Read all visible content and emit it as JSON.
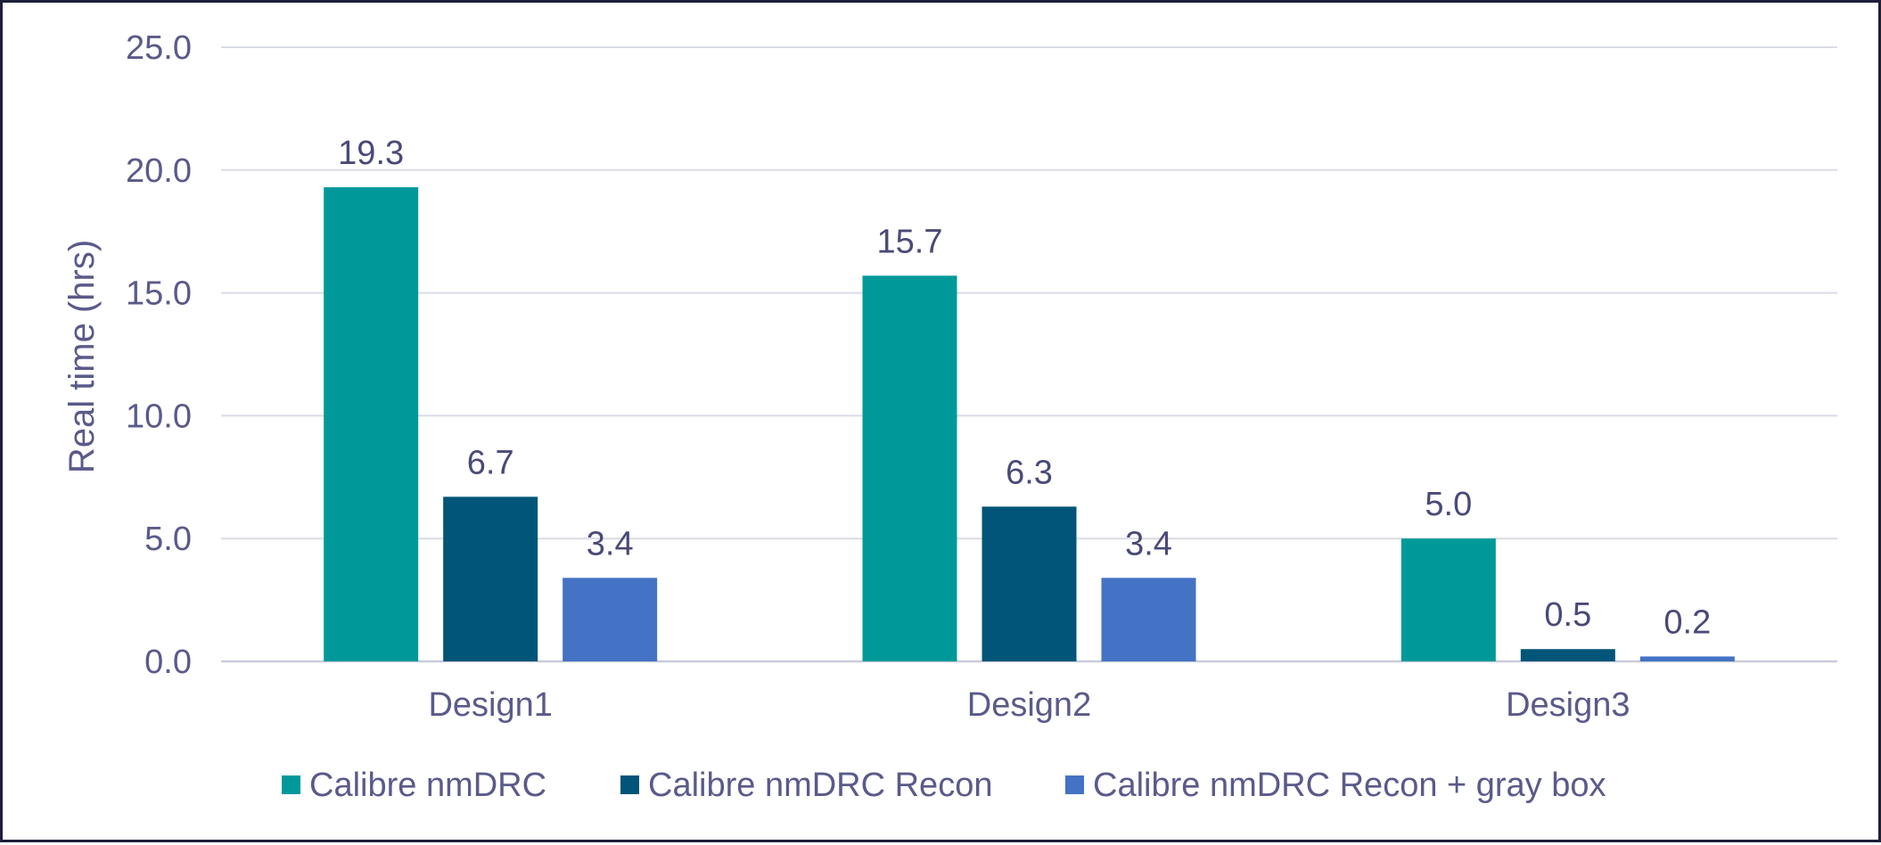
{
  "chart_data": {
    "type": "bar",
    "title": "",
    "xlabel": "",
    "ylabel": "Real time (hrs)",
    "categories": [
      "Design1",
      "Design2",
      "Design3"
    ],
    "series": [
      {
        "name": "Calibre nmDRC",
        "values": [
          19.3,
          15.7,
          5.0
        ],
        "color": "#009999"
      },
      {
        "name": "Calibre nmDRC Recon",
        "values": [
          6.7,
          6.3,
          0.5
        ],
        "color": "#005578"
      },
      {
        "name": "Calibre nmDRC Recon + gray box",
        "values": [
          3.4,
          3.4,
          0.2
        ],
        "color": "#4472c4"
      }
    ],
    "ylim": [
      0,
      25
    ],
    "yticks": [
      "0.0",
      "5.0",
      "10.0",
      "15.0",
      "20.0",
      "25.0"
    ],
    "ytick_values": [
      0,
      5,
      10,
      15,
      20,
      25
    ],
    "data_labels": [
      [
        "19.3",
        "15.7",
        "5.0"
      ],
      [
        "6.7",
        "6.3",
        "0.5"
      ],
      [
        "3.4",
        "3.4",
        "0.2"
      ]
    ],
    "grid": true,
    "legend_position": "bottom"
  }
}
